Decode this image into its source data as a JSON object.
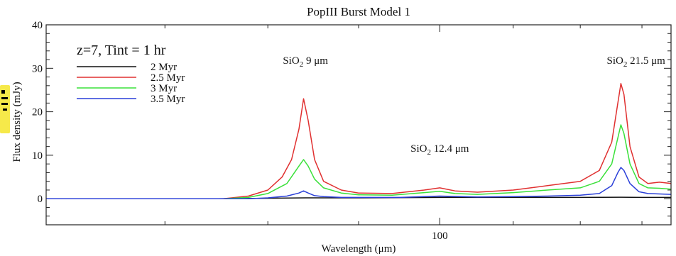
{
  "chart_data": {
    "type": "line",
    "title": "PopIII Burst Model 1",
    "xlabel": "Wavelength (μm)",
    "ylabel": "Flux density (mJy)",
    "xscale": "log",
    "xlim": [
      60,
      135
    ],
    "ylim": [
      -6,
      40
    ],
    "x_ticks": [
      100
    ],
    "y_ticks": [
      0,
      10,
      20,
      30,
      40
    ],
    "grid": false,
    "legend_heading": "z=7, Tint = 1 hr",
    "legend_position": "top-left",
    "annotations": {
      "sio2_9": {
        "prefix": "SiO",
        "sub": "2",
        "rest": " 9 μm",
        "x": 84,
        "y": 31
      },
      "sio2_124": {
        "prefix": "SiO",
        "sub": "2",
        "rest": " 12.4 μm",
        "x": 100,
        "y": 10.8
      },
      "sio2_215": {
        "prefix": "SiO",
        "sub": "2",
        "rest": " 21.5 μm",
        "x": 129,
        "y": 31
      }
    },
    "series": [
      {
        "name": "2 Myr",
        "color": "#111111",
        "x": [
          60,
          70,
          75,
          80,
          84,
          90,
          100,
          110,
          120,
          126.5,
          130,
          135
        ],
        "y": [
          0,
          0,
          0,
          0.1,
          0.2,
          0.2,
          0.3,
          0.3,
          0.3,
          0.35,
          0.3,
          0.3
        ]
      },
      {
        "name": "2.5 Myr",
        "color": "#e03030",
        "x": [
          60,
          70,
          75.5,
          78,
          80,
          81.5,
          82.5,
          83.3,
          83.8,
          84.3,
          85,
          86,
          88,
          90,
          94,
          98,
          100,
          102,
          105,
          110,
          115,
          120,
          123,
          125,
          126,
          126.5,
          127,
          128,
          129.5,
          131,
          133,
          135
        ],
        "y": [
          0,
          0,
          0,
          0.6,
          2,
          5,
          9,
          16,
          23,
          18,
          9,
          4,
          2,
          1.3,
          1.2,
          2,
          2.5,
          1.8,
          1.5,
          2,
          3,
          4,
          6.5,
          13,
          22,
          26.5,
          24,
          12,
          5,
          3.5,
          3.8,
          3.5
        ]
      },
      {
        "name": "3 Myr",
        "color": "#3ae03a",
        "x": [
          60,
          70,
          75.5,
          78,
          80,
          82,
          83.3,
          83.8,
          84.3,
          85,
          86,
          88,
          90,
          94,
          98,
          100,
          102,
          105,
          110,
          115,
          120,
          123,
          125,
          126,
          126.5,
          127,
          128,
          129.5,
          131,
          133,
          135
        ],
        "y": [
          0,
          0,
          0,
          0.3,
          1.2,
          3.5,
          7.5,
          9,
          7.5,
          4.5,
          2.5,
          1.3,
          0.9,
          0.8,
          1.4,
          1.7,
          1.2,
          1,
          1.4,
          2,
          2.5,
          4,
          8,
          14,
          17,
          15,
          8,
          3.5,
          2.5,
          2.4,
          2.2
        ]
      },
      {
        "name": "3.5 Myr",
        "color": "#2a3fd8",
        "x": [
          60,
          70,
          75,
          78,
          80,
          82,
          83.3,
          83.8,
          84.3,
          85,
          86,
          88,
          90,
          95,
          100,
          105,
          110,
          115,
          120,
          123,
          125,
          126,
          126.5,
          127,
          128,
          129.5,
          131,
          133,
          135
        ],
        "y": [
          0,
          0,
          0,
          0,
          0.2,
          0.6,
          1.3,
          1.8,
          1.3,
          0.7,
          0.5,
          0.3,
          0.3,
          0.3,
          0.6,
          0.4,
          0.5,
          0.6,
          0.8,
          1.2,
          3,
          6,
          7.2,
          6.5,
          3.5,
          1.6,
          1.2,
          1.1,
          1
        ]
      }
    ]
  }
}
